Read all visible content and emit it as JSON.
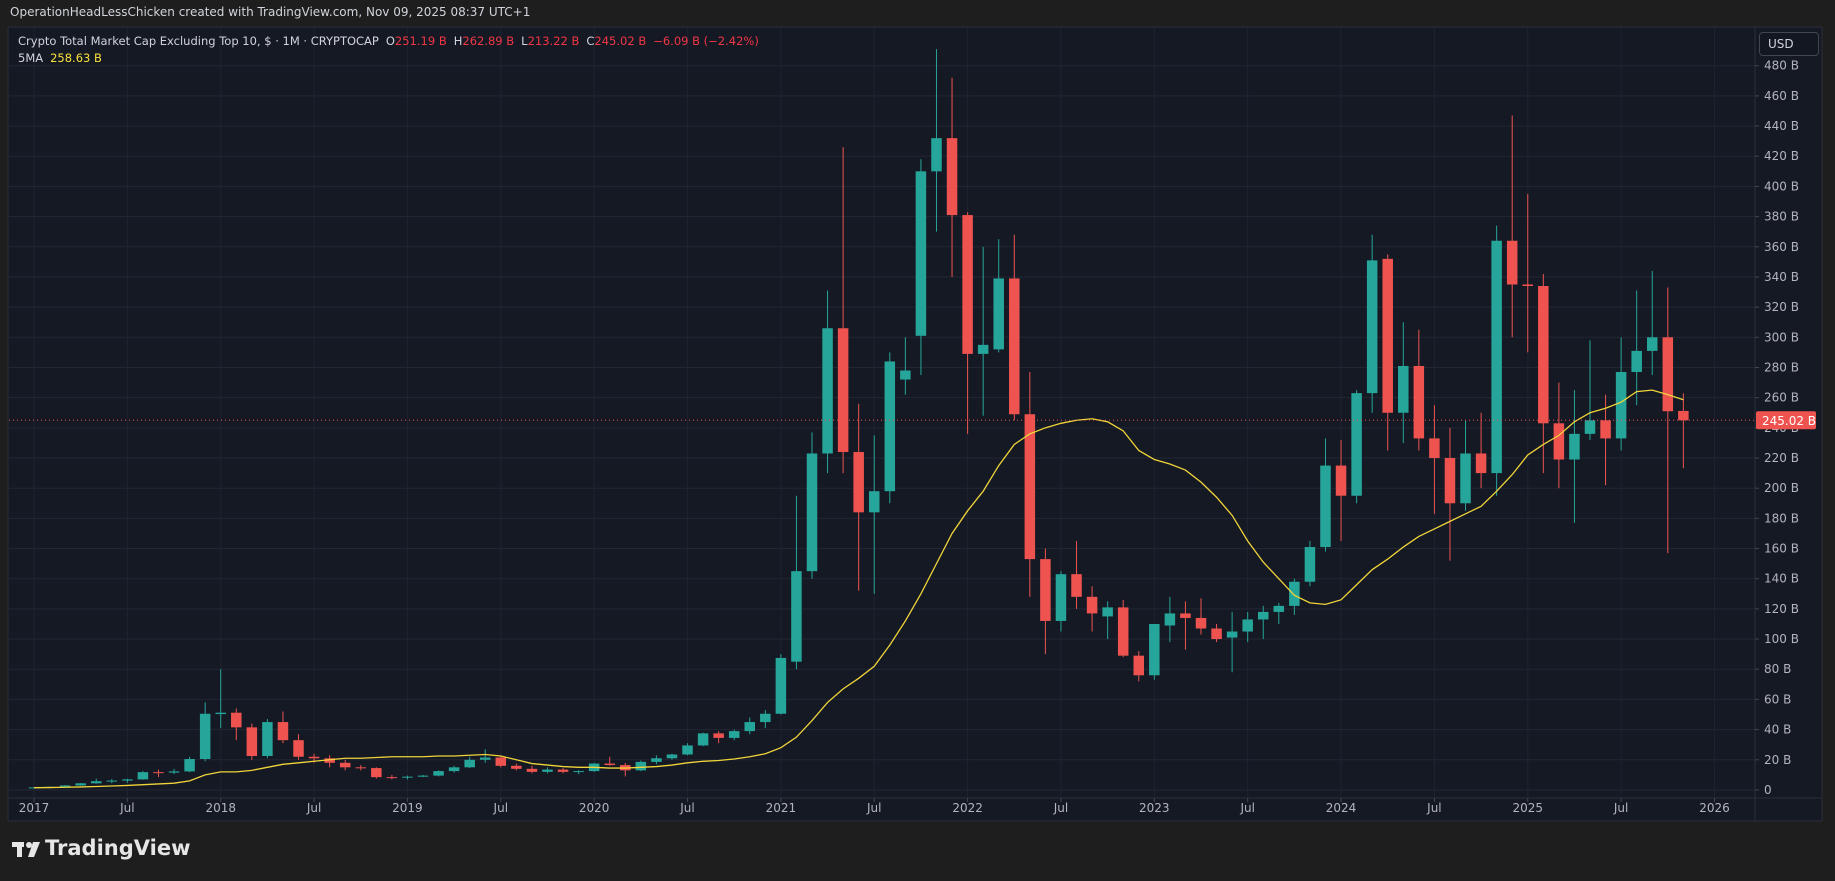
{
  "header": {
    "text": "OperationHeadLessChicken created with TradingView.com, Nov 09, 2025 08:37 UTC+1"
  },
  "chart_data": {
    "type": "candlestick",
    "title": "Crypto Total Market Cap Excluding Top 10, $ · 1M · CRYPTOCAP",
    "x": [
      "2017-01",
      "2017-02",
      "2017-03",
      "2017-04",
      "2017-05",
      "2017-06",
      "2017-07",
      "2017-08",
      "2017-09",
      "2017-10",
      "2017-11",
      "2017-12",
      "2018-01",
      "2018-02",
      "2018-03",
      "2018-04",
      "2018-05",
      "2018-06",
      "2018-07",
      "2018-08",
      "2018-09",
      "2018-10",
      "2018-11",
      "2018-12",
      "2019-01",
      "2019-02",
      "2019-03",
      "2019-04",
      "2019-05",
      "2019-06",
      "2019-07",
      "2019-08",
      "2019-09",
      "2019-10",
      "2019-11",
      "2019-12",
      "2020-01",
      "2020-02",
      "2020-03",
      "2020-04",
      "2020-05",
      "2020-06",
      "2020-07",
      "2020-08",
      "2020-09",
      "2020-10",
      "2020-11",
      "2020-12",
      "2021-01",
      "2021-02",
      "2021-03",
      "2021-04",
      "2021-05",
      "2021-06",
      "2021-07",
      "2021-08",
      "2021-09",
      "2021-10",
      "2021-11",
      "2021-12",
      "2022-01",
      "2022-02",
      "2022-03",
      "2022-04",
      "2022-05",
      "2022-06",
      "2022-07",
      "2022-08",
      "2022-09",
      "2022-10",
      "2022-11",
      "2022-12",
      "2023-01",
      "2023-02",
      "2023-03",
      "2023-04",
      "2023-05",
      "2023-06",
      "2023-07",
      "2023-08",
      "2023-09",
      "2023-10",
      "2023-11",
      "2023-12",
      "2024-01",
      "2024-02",
      "2024-03",
      "2024-04",
      "2024-05",
      "2024-06",
      "2024-07",
      "2024-08",
      "2024-09",
      "2024-10",
      "2024-11",
      "2024-12",
      "2025-01",
      "2025-02",
      "2025-03",
      "2025-04",
      "2025-05",
      "2025-06",
      "2025-07",
      "2025-08",
      "2025-09",
      "2025-10",
      "2025-11"
    ],
    "open": [
      1.5,
      1.7,
      2.1,
      3.0,
      4.4,
      5.8,
      6.2,
      7.0,
      11.8,
      11.5,
      12.3,
      20.5,
      50.3,
      51.2,
      41.5,
      22.5,
      45,
      33,
      22,
      21,
      18,
      15,
      14.5,
      8.5,
      8.3,
      8.8,
      9.5,
      12.5,
      15,
      20,
      21.5,
      16,
      14,
      12,
      13.5,
      12,
      12.5,
      17.5,
      16.5,
      13,
      18.6,
      21,
      23.5,
      29.5,
      37.5,
      34.5,
      39,
      45,
      50.5,
      85,
      145,
      223,
      306,
      224,
      184,
      198,
      272,
      301,
      410,
      432,
      381,
      289,
      292,
      339,
      249,
      153,
      112,
      143,
      128,
      115,
      121,
      89,
      76,
      109,
      117,
      114,
      107,
      101,
      105,
      113,
      118,
      122,
      138,
      161,
      215,
      195,
      263,
      352,
      250,
      281,
      233,
      220,
      190,
      223,
      210,
      364,
      335,
      334,
      243,
      219,
      236,
      245,
      233,
      277,
      291,
      300,
      251.19
    ],
    "high": [
      1.8,
      2.2,
      3.2,
      4.6,
      7.5,
      7.2,
      7.4,
      12.5,
      13.5,
      14,
      22,
      58,
      80,
      54,
      44,
      47,
      52,
      37,
      24,
      23,
      20,
      16.5,
      15,
      10,
      9.5,
      10,
      13,
      16,
      22,
      27,
      22.5,
      17.5,
      16,
      15,
      14.5,
      13,
      18,
      22,
      18,
      19.5,
      23,
      24,
      31,
      38,
      39,
      40,
      48,
      53,
      90,
      195,
      237,
      331,
      426,
      256,
      235,
      290,
      300,
      418,
      491,
      472,
      383,
      360,
      365,
      368,
      277,
      160,
      145,
      165,
      135,
      125,
      126,
      92,
      110,
      128,
      125,
      127,
      110,
      118,
      118,
      122,
      124,
      140,
      165,
      233,
      232,
      265,
      368,
      355,
      310,
      305,
      255,
      240,
      245,
      250,
      374,
      447,
      395,
      342,
      270,
      265,
      298,
      262,
      300,
      331,
      344,
      333,
      262.89
    ],
    "low": [
      1.3,
      1.6,
      2.0,
      2.8,
      4.2,
      4.5,
      4.8,
      6.8,
      8.5,
      10.5,
      11.8,
      19,
      41,
      33,
      20,
      21,
      31,
      20,
      18,
      15,
      13,
      13,
      7.5,
      7,
      7,
      8.5,
      9,
      11.5,
      14.5,
      18,
      15,
      13,
      11,
      11,
      11,
      10.5,
      12,
      16,
      9,
      12.5,
      17,
      20,
      23,
      29,
      31,
      33,
      37,
      41,
      50,
      80,
      140,
      210,
      210,
      132,
      130,
      190,
      262,
      275,
      370,
      340,
      236,
      248,
      290,
      245,
      128,
      90,
      105,
      120,
      105,
      100,
      88,
      72,
      73,
      98,
      93,
      103,
      98,
      78,
      98,
      100,
      110,
      116,
      135,
      158,
      165,
      190,
      250,
      225,
      230,
      225,
      183,
      152,
      185,
      200,
      195,
      300,
      290,
      210,
      200,
      177,
      232,
      202,
      225,
      255,
      275,
      157,
      213.22
    ],
    "close": [
      1.7,
      2.1,
      3.0,
      4.4,
      5.8,
      6.2,
      7.0,
      11.8,
      11.5,
      12.3,
      20.5,
      50.5,
      51.2,
      41.5,
      22.5,
      45,
      33,
      22,
      21,
      18,
      15,
      14.5,
      8.5,
      8.3,
      8.8,
      9.5,
      12.5,
      15,
      20,
      21.5,
      16,
      14,
      12,
      13.5,
      12,
      12.5,
      17.5,
      16.5,
      13,
      18.6,
      21,
      23.5,
      29.5,
      37.5,
      34.5,
      39,
      45,
      50.5,
      87.5,
      145,
      223,
      306,
      224,
      184,
      198,
      284,
      278,
      410,
      432,
      381,
      289,
      295,
      339,
      249,
      153,
      112,
      143,
      128,
      117,
      121,
      89,
      76,
      110,
      117,
      114,
      107,
      100,
      105,
      113,
      118,
      122,
      138,
      161,
      215,
      195,
      263,
      351,
      250,
      281,
      233,
      220,
      190,
      223,
      210,
      364,
      335,
      334,
      243,
      219,
      236,
      245,
      233,
      277,
      291,
      300,
      251,
      245.02
    ],
    "up_color": "#26a69a",
    "down_color": "#ef5350",
    "series": [
      {
        "name": "5MA",
        "color": "#f0d43a",
        "values": [
          1.5,
          1.6,
          1.8,
          2,
          2.3,
          2.6,
          3,
          3.5,
          4,
          4.5,
          6,
          10,
          12,
          12,
          13,
          15,
          17,
          18,
          19,
          20,
          21,
          21,
          21.5,
          22,
          22,
          22,
          22.5,
          22.5,
          23,
          23.5,
          22.5,
          20,
          17.5,
          16.5,
          15.5,
          15,
          15,
          14.5,
          14.5,
          15,
          15.5,
          16.5,
          18,
          19,
          19.5,
          20.5,
          22,
          24,
          28,
          35,
          46,
          58,
          67,
          74,
          82,
          96,
          112,
          130,
          150,
          170,
          185,
          198,
          215,
          229,
          236,
          240,
          243,
          245,
          246,
          244,
          238,
          225,
          219,
          216,
          212,
          204,
          194,
          182,
          165,
          151,
          140,
          129,
          124,
          123,
          126,
          136,
          146,
          153,
          161,
          168,
          173,
          178,
          183,
          188,
          198,
          209,
          222,
          229,
          235,
          244,
          250,
          253,
          257,
          264,
          265,
          262,
          258.63
        ]
      }
    ],
    "legend": {
      "open_label": "O",
      "open": "251.19 B",
      "high_label": "H",
      "high": "262.89 B",
      "low_label": "L",
      "low": "213.22 B",
      "close_label": "C",
      "close": "245.02 B",
      "change": "−6.09 B (−2.42%)",
      "ma_value": "258.63 B"
    },
    "last_price_label": "245.02 B",
    "currency": "USD",
    "ylim": [
      -5,
      504
    ],
    "yticks": [
      0,
      {
        "value": 20,
        "label": "20 B"
      },
      {
        "value": 40,
        "label": "40 B"
      },
      {
        "value": 60,
        "label": "60 B"
      },
      {
        "value": 80,
        "label": "80 B"
      },
      {
        "value": 100,
        "label": "100 B"
      },
      {
        "value": 120,
        "label": "120 B"
      },
      {
        "value": 140,
        "label": "140 B"
      },
      {
        "value": 160,
        "label": "160 B"
      },
      {
        "value": 180,
        "label": "180 B"
      },
      {
        "value": 200,
        "label": "200 B"
      },
      {
        "value": 220,
        "label": "220 B"
      },
      {
        "value": 240,
        "label": "240 B"
      },
      {
        "value": 260,
        "label": "260 B"
      },
      {
        "value": 280,
        "label": "280 B"
      },
      {
        "value": 300,
        "label": "300 B"
      },
      {
        "value": 320,
        "label": "320 B"
      },
      {
        "value": 340,
        "label": "340 B"
      },
      {
        "value": 360,
        "label": "360 B"
      },
      {
        "value": 380,
        "label": "380 B"
      },
      {
        "value": 400,
        "label": "400 B"
      },
      {
        "value": 420,
        "label": "420 B"
      },
      {
        "value": 440,
        "label": "440 B"
      },
      {
        "value": 460,
        "label": "460 B"
      },
      {
        "value": 480,
        "label": "480 B"
      }
    ],
    "xticks": [
      {
        "value": "2017-01",
        "label": "2017"
      },
      {
        "value": "2017-07",
        "label": "Jul"
      },
      {
        "value": "2018-01",
        "label": "2018"
      },
      {
        "value": "2018-07",
        "label": "Jul"
      },
      {
        "value": "2019-01",
        "label": "2019"
      },
      {
        "value": "2019-07",
        "label": "Jul"
      },
      {
        "value": "2020-01",
        "label": "2020"
      },
      {
        "value": "2020-07",
        "label": "Jul"
      },
      {
        "value": "2021-01",
        "label": "2021"
      },
      {
        "value": "2021-07",
        "label": "Jul"
      },
      {
        "value": "2022-01",
        "label": "2022"
      },
      {
        "value": "2022-07",
        "label": "Jul"
      },
      {
        "value": "2023-01",
        "label": "2023"
      },
      {
        "value": "2023-07",
        "label": "Jul"
      },
      {
        "value": "2024-01",
        "label": "2024"
      },
      {
        "value": "2024-07",
        "label": "Jul"
      },
      {
        "value": "2025-01",
        "label": "2025"
      },
      {
        "value": "2025-07",
        "label": "Jul"
      },
      {
        "value": "2026-01",
        "label": "2026"
      }
    ],
    "grid": true
  },
  "footer": {
    "brand": "TradingView"
  }
}
